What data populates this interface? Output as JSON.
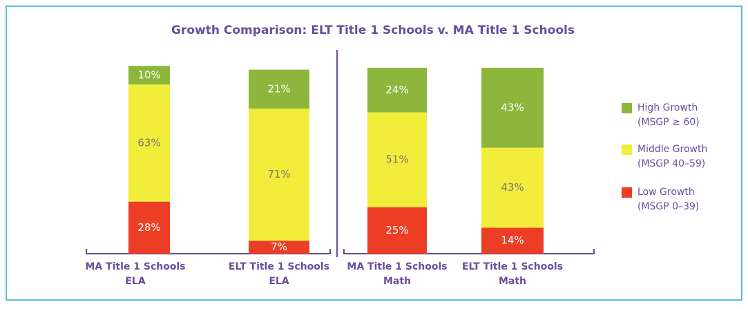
{
  "chart_data": {
    "type": "stacked_bar",
    "title": "Growth Comparison: ELT Title 1 Schools v. MA Title 1 Schools",
    "categories": [
      [
        "MA Title 1 Schools",
        "ELA"
      ],
      [
        "ELT Title 1 Schools",
        "ELA"
      ],
      [
        "MA Title 1 Schools",
        "Math"
      ],
      [
        "ELT Title 1 Schools",
        "Math"
      ]
    ],
    "series": [
      {
        "name": [
          "Low Growth",
          "(MSGP 0–39)"
        ],
        "color": "#ec3e24",
        "values": [
          28,
          7,
          25,
          14
        ],
        "value_labels": [
          "28%",
          "7%",
          "25%",
          "14%"
        ]
      },
      {
        "name": [
          "Middle Growth",
          "(MSGP 40–59)"
        ],
        "color": "#f2ec3a",
        "values": [
          63,
          71,
          51,
          43
        ],
        "value_labels": [
          "63%",
          "71%",
          "51%",
          "43%"
        ]
      },
      {
        "name": [
          "High Growth",
          "(MSGP ≥ 60)"
        ],
        "color": "#8cb63c",
        "values": [
          10,
          21,
          24,
          43
        ],
        "value_labels": [
          "10%",
          "21%",
          "24%",
          "43%"
        ]
      }
    ]
  }
}
